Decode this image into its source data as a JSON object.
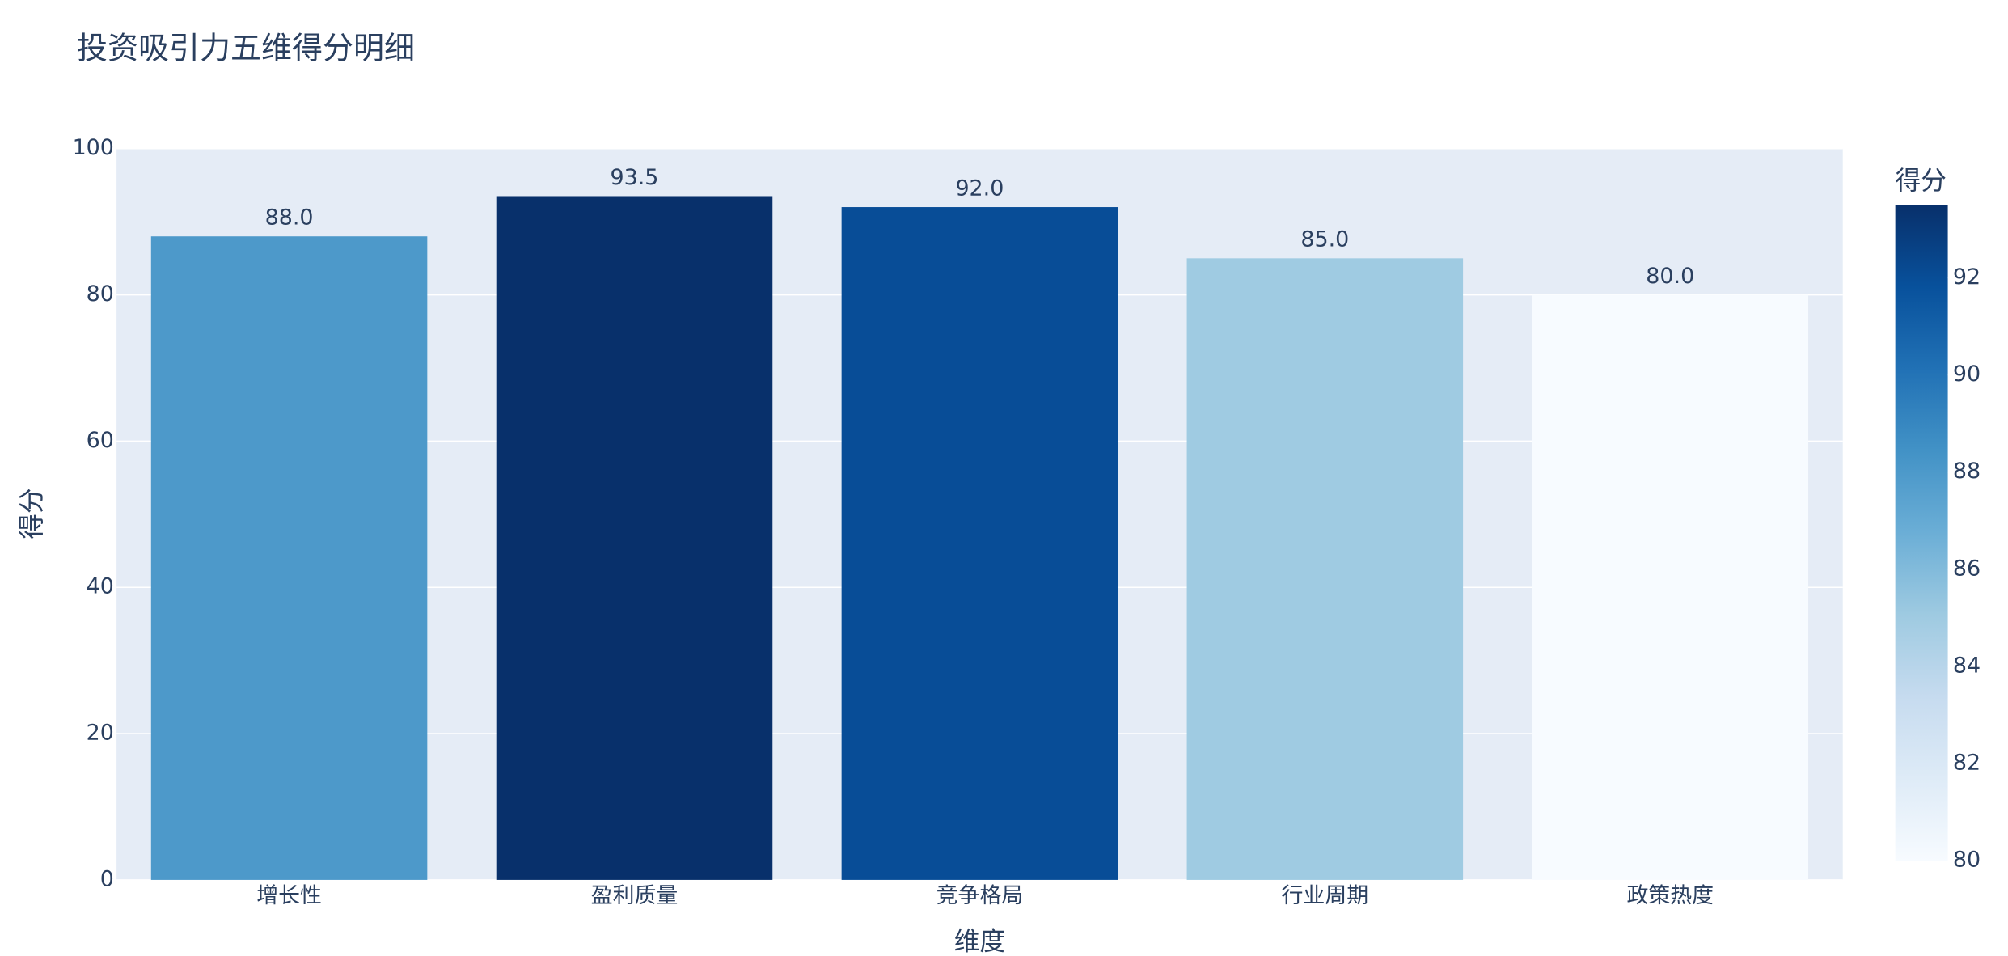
{
  "chart_data": {
    "type": "bar",
    "title": "投资吸引力五维得分明细",
    "x_label": "维度",
    "y_label": "得分",
    "categories": [
      "增长性",
      "盈利质量",
      "竞争格局",
      "行业周期",
      "政策热度"
    ],
    "values": [
      88.0,
      93.5,
      92.0,
      85.0,
      80.0
    ],
    "value_labels": [
      "88.0",
      "93.5",
      "92.0",
      "85.0",
      "80.0"
    ],
    "ylim": [
      0,
      100
    ],
    "yticks": [
      0,
      20,
      40,
      60,
      80,
      100
    ],
    "grid": true,
    "colorscale": [
      "#f7fbff",
      "#deebf7",
      "#c6dbef",
      "#9ecae1",
      "#6baed6",
      "#4292c6",
      "#2171b5",
      "#08519c",
      "#08306b"
    ],
    "colorbar": {
      "title": "得分",
      "range": [
        80,
        93.5
      ],
      "ticks": [
        80,
        82,
        84,
        86,
        88,
        90,
        92
      ]
    }
  }
}
